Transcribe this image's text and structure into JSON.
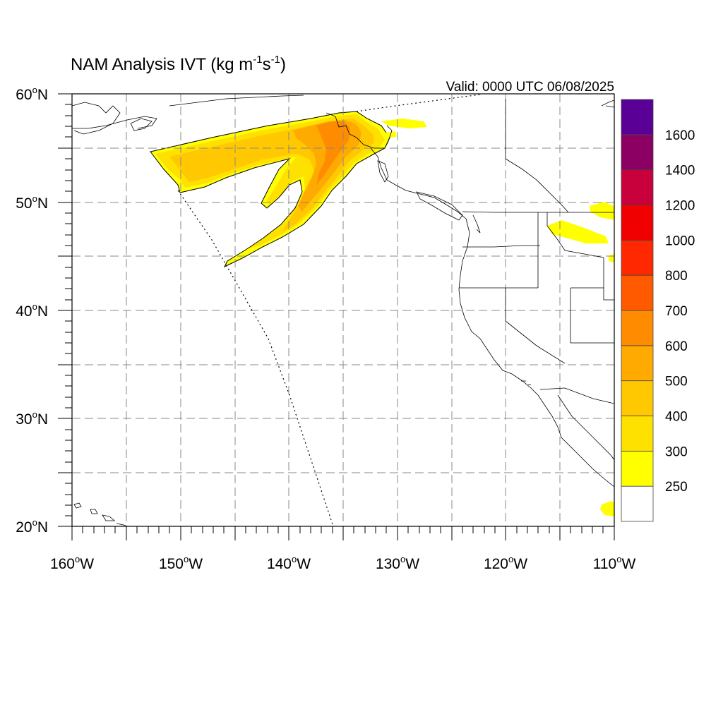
{
  "title": {
    "main": "NAM Analysis IVT (kg m",
    "sup1": "-1",
    "mid": "s",
    "sup2": "-1",
    "end": ")"
  },
  "valid": "Valid: 0000 UTC 06/08/2025",
  "lat_labels": [
    {
      "value": "60",
      "unit": "o",
      "hemi": "N"
    },
    {
      "value": "50",
      "unit": "o",
      "hemi": "N"
    },
    {
      "value": "40",
      "unit": "o",
      "hemi": "N"
    },
    {
      "value": "30",
      "unit": "o",
      "hemi": "N"
    },
    {
      "value": "20",
      "unit": "o",
      "hemi": "N"
    }
  ],
  "lon_labels": [
    {
      "value": "160",
      "unit": "o",
      "hemi": "W"
    },
    {
      "value": "150",
      "unit": "o",
      "hemi": "W"
    },
    {
      "value": "140",
      "unit": "o",
      "hemi": "W"
    },
    {
      "value": "130",
      "unit": "o",
      "hemi": "W"
    },
    {
      "value": "120",
      "unit": "o",
      "hemi": "W"
    },
    {
      "value": "110",
      "unit": "o",
      "hemi": "W"
    }
  ],
  "colorbar": {
    "levels": [
      "250",
      "300",
      "400",
      "500",
      "600",
      "700",
      "800",
      "1000",
      "1200",
      "1400",
      "1600"
    ],
    "colors": [
      "#ffffff",
      "#ffff00",
      "#ffe100",
      "#ffc800",
      "#ffaa00",
      "#ff8c00",
      "#ff5a00",
      "#ff2800",
      "#f00000",
      "#c8003c",
      "#8c0064",
      "#5a0096"
    ]
  },
  "colors": {
    "ivt_250": "#ffff00",
    "ivt_300": "#ffe100",
    "ivt_400": "#ffc800",
    "ivt_500": "#ffaa00",
    "ivt_600": "#ff8c00",
    "coast": "#000000",
    "grid": "#888888"
  }
}
